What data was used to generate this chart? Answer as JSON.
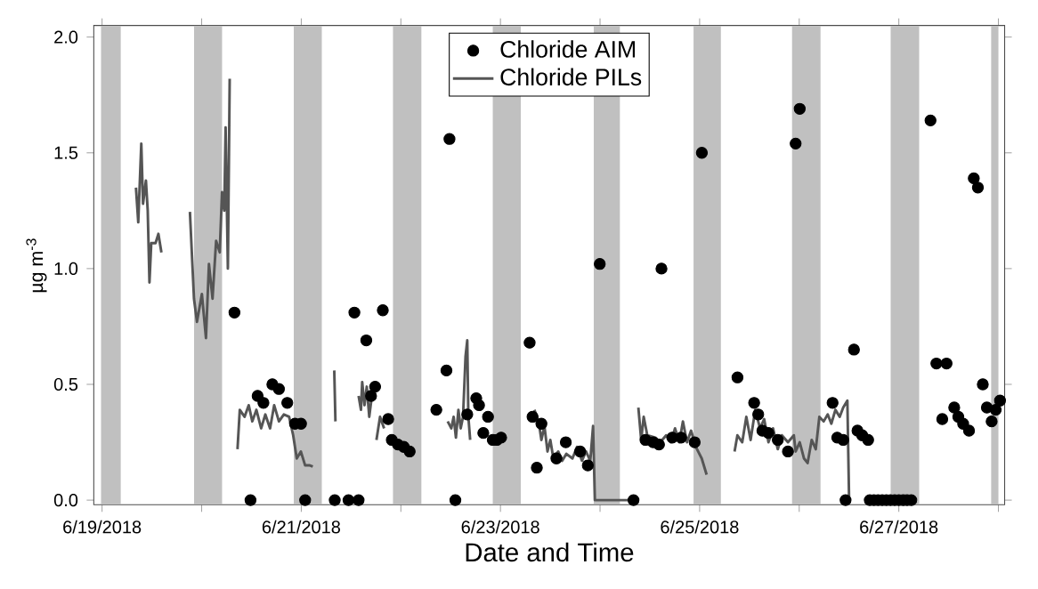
{
  "chart_data": {
    "type": "line",
    "xlabel": "Date and Time",
    "ylabel": "µg m$^{-3}$",
    "xlim": [
      "2018-06-18T22:00",
      "2018-06-28T01:30"
    ],
    "ylim": [
      -0.02,
      2.05
    ],
    "xticks": [
      {
        "value": "2018-06-19",
        "label": "6/19/2018"
      },
      {
        "value": "2018-06-20",
        "label": null
      },
      {
        "value": "2018-06-21",
        "label": "6/21/2018"
      },
      {
        "value": "2018-06-22",
        "label": null
      },
      {
        "value": "2018-06-23",
        "label": "6/23/2018"
      },
      {
        "value": "2018-06-24",
        "label": null
      },
      {
        "value": "2018-06-25",
        "label": "6/25/2018"
      },
      {
        "value": "2018-06-26",
        "label": null
      },
      {
        "value": "2018-06-27",
        "label": "6/27/2018"
      },
      {
        "value": "2018-06-28",
        "label": null
      }
    ],
    "yticks": [
      {
        "value": 0,
        "label": "0.0"
      },
      {
        "value": 0.5,
        "label": "0.5"
      },
      {
        "value": 1,
        "label": "1.0"
      },
      {
        "value": 1.5,
        "label": "1.5"
      },
      {
        "value": 2,
        "label": "2.0"
      }
    ],
    "legend": "top",
    "grid": false,
    "bands": [
      {
        "axis": "x",
        "from": "2018-06-18T23:45",
        "to": "2018-06-19T04:30",
        "color": "#c0c0c0"
      },
      {
        "axis": "x",
        "from": "2018-06-19T22:10",
        "to": "2018-06-20T04:55",
        "color": "#c0c0c0"
      },
      {
        "axis": "x",
        "from": "2018-06-20T22:12",
        "to": "2018-06-21T04:57",
        "color": "#c0c0c0"
      },
      {
        "axis": "x",
        "from": "2018-06-21T22:06",
        "to": "2018-06-22T04:58",
        "color": "#c0c0c0"
      },
      {
        "axis": "x",
        "from": "2018-06-22T22:09",
        "to": "2018-06-23T04:54",
        "color": "#c0c0c0"
      },
      {
        "axis": "x",
        "from": "2018-06-23T22:29",
        "to": "2018-06-24T04:47",
        "color": "#c0c0c0"
      },
      {
        "axis": "x",
        "from": "2018-06-24T22:32",
        "to": "2018-06-25T05:07",
        "color": "#c0c0c0"
      },
      {
        "axis": "x",
        "from": "2018-06-25T22:16",
        "to": "2018-06-26T05:08",
        "color": "#c0c0c0"
      },
      {
        "axis": "x",
        "from": "2018-06-26T22:02",
        "to": "2018-06-27T04:54",
        "color": "#c0c0c0"
      },
      {
        "axis": "x",
        "from": "2018-06-27T22:15",
        "to": "2018-06-28T00:00",
        "color": "#c0c0c0"
      }
    ],
    "series": [
      {
        "name": "Chloride AIM",
        "type": "scatter",
        "marker": "circle",
        "color": "#000000",
        "x": [
          "2018-06-20T07:54",
          "2018-06-20T11:46",
          "2018-06-20T13:29",
          "2018-06-20T14:53",
          "2018-06-20T17:02",
          "2018-06-20T18:37",
          "2018-06-20T20:38",
          "2018-06-20T22:29",
          "2018-06-20T23:56",
          "2018-06-21T00:56",
          "2018-06-21T08:04",
          "2018-06-21T11:23",
          "2018-06-21T12:48",
          "2018-06-21T13:49",
          "2018-06-21T15:40",
          "2018-06-21T16:49",
          "2018-06-21T17:48",
          "2018-06-21T19:39",
          "2018-06-21T20:57",
          "2018-06-21T21:49",
          "2018-06-21T23:17",
          "2018-06-22T00:42",
          "2018-06-22T02:07",
          "2018-06-22T08:33",
          "2018-06-22T10:59",
          "2018-06-22T11:43",
          "2018-06-22T13:08",
          "2018-06-22T16:00",
          "2018-06-22T18:10",
          "2018-06-22T18:50",
          "2018-06-22T19:52",
          "2018-06-22T21:00",
          "2018-06-22T22:09",
          "2018-06-22T23:08",
          "2018-06-23T00:10",
          "2018-06-23T07:02",
          "2018-06-23T07:44",
          "2018-06-23T08:46",
          "2018-06-23T09:52",
          "2018-06-23T13:29",
          "2018-06-23T15:45",
          "2018-06-23T19:12",
          "2018-06-23T21:03",
          "2018-06-23T23:56",
          "2018-06-24T08:04",
          "2018-06-24T10:57",
          "2018-06-24T12:48",
          "2018-06-24T14:12",
          "2018-06-24T14:48",
          "2018-06-24T17:24",
          "2018-06-24T19:32",
          "2018-06-24T22:48",
          "2018-06-25T00:32",
          "2018-06-25T09:07",
          "2018-06-25T13:08",
          "2018-06-25T14:07",
          "2018-06-25T15:07",
          "2018-06-25T16:34",
          "2018-06-25T18:50",
          "2018-06-25T21:17",
          "2018-06-25T23:08",
          "2018-06-26T00:07",
          "2018-06-26T08:02",
          "2018-06-26T09:09",
          "2018-06-26T10:36",
          "2018-06-26T11:10",
          "2018-06-26T13:11",
          "2018-06-26T14:02",
          "2018-06-26T15:10",
          "2018-06-26T16:36",
          "2018-06-26T17:00",
          "2018-06-26T18:00",
          "2018-06-26T19:00",
          "2018-06-26T20:00",
          "2018-06-26T21:00",
          "2018-06-26T22:00",
          "2018-06-26T23:00",
          "2018-06-27T00:00",
          "2018-06-27T01:00",
          "2018-06-27T02:00",
          "2018-06-27T03:00",
          "2018-06-27T07:38",
          "2018-06-27T09:03",
          "2018-06-27T10:28",
          "2018-06-27T11:30",
          "2018-06-27T13:21",
          "2018-06-27T14:20",
          "2018-06-27T15:30",
          "2018-06-27T16:55",
          "2018-06-27T18:04",
          "2018-06-27T19:03",
          "2018-06-27T20:14",
          "2018-06-27T21:13",
          "2018-06-27T22:22",
          "2018-06-27T23:21",
          "2018-06-28T00:23"
        ],
        "values": [
          0.81,
          0,
          0.45,
          0.42,
          0.5,
          0.48,
          0.42,
          0.33,
          0.33,
          0,
          0,
          0,
          0.81,
          0,
          0.69,
          0.45,
          0.49,
          0.82,
          0.35,
          0.26,
          0.24,
          0.23,
          0.21,
          0.39,
          0.56,
          1.56,
          0,
          0.37,
          0.44,
          0.41,
          0.29,
          0.36,
          0.26,
          0.26,
          0.27,
          0.68,
          0.36,
          0.14,
          0.33,
          0.18,
          0.25,
          0.21,
          0.15,
          1.02,
          0,
          0.26,
          0.25,
          0.24,
          1.0,
          0.27,
          0.27,
          0.25,
          1.5,
          0.53,
          0.42,
          0.37,
          0.3,
          0.29,
          0.26,
          0.21,
          1.54,
          1.69,
          0.42,
          0.27,
          0.26,
          0,
          0.65,
          0.3,
          0.28,
          0.26,
          0,
          0,
          0,
          0,
          0,
          0,
          0,
          0,
          0,
          0,
          0,
          1.64,
          0.59,
          0.35,
          0.59,
          0.4,
          0.36,
          0.33,
          0.3,
          1.39,
          1.35,
          0.5,
          0.4,
          0.34,
          0.39,
          0.43
        ]
      },
      {
        "name": "Chloride PILs",
        "type": "line",
        "color": "#555555",
        "x": [
          "2018-06-19T08:10",
          "2018-06-19T08:43",
          "2018-06-19T09:27",
          "2018-06-19T09:52",
          "2018-06-19T10:34",
          "2018-06-19T11:00",
          "2018-06-19T11:25",
          "2018-06-19T11:51",
          "2018-06-19T12:53",
          "2018-06-19T13:34",
          "2018-06-19T14:18",
          "2018-06-19T18:00",
          "2018-06-19T21:10",
          "2018-06-19T22:09",
          "2018-06-19T22:52",
          "2018-06-20T00:03",
          "2018-06-20T01:02",
          "2018-06-20T01:45",
          "2018-06-20T02:37",
          "2018-06-20T03:29",
          "2018-06-20T04:21",
          "2018-06-20T04:54",
          "2018-06-20T05:27",
          "2018-06-20T05:46",
          "2018-06-20T06:19",
          "2018-06-20T06:45",
          "2018-06-20T07:40",
          "2018-06-20T08:38",
          "2018-06-20T09:11",
          "2018-06-20T10:20",
          "2018-06-20T11:20",
          "2018-06-20T12:12",
          "2018-06-20T13:11",
          "2018-06-20T14:20",
          "2018-06-20T15:20",
          "2018-06-20T16:29",
          "2018-06-20T17:28",
          "2018-06-20T18:37",
          "2018-06-20T19:48",
          "2018-06-20T21:04",
          "2018-06-20T22:03",
          "2018-06-20T22:55",
          "2018-06-20T23:54",
          "2018-06-21T00:56",
          "2018-06-21T02:04",
          "2018-06-21T02:47",
          "2018-06-21T05:00",
          "2018-06-21T07:57",
          "2018-06-21T08:14",
          "2018-06-21T11:00",
          "2018-06-21T13:49",
          "2018-06-21T14:23",
          "2018-06-21T14:41",
          "2018-06-21T15:14",
          "2018-06-21T15:47",
          "2018-06-21T16:23",
          "2018-06-21T17:05",
          "2018-06-21T17:35",
          "2018-06-21T18:07",
          "2018-06-21T18:59",
          "2018-06-21T19:58",
          "2018-06-22T06:00",
          "2018-06-22T11:17",
          "2018-06-22T12:09",
          "2018-06-22T12:43",
          "2018-06-22T13:16",
          "2018-06-22T13:52",
          "2018-06-22T14:25",
          "2018-06-22T14:59",
          "2018-06-22T15:35",
          "2018-06-22T16:00",
          "2018-06-22T16:16",
          "2018-06-22T16:42",
          "2018-06-23T02:00",
          "2018-06-23T08:10",
          "2018-06-23T09:12",
          "2018-06-23T09:52",
          "2018-06-23T10:36",
          "2018-06-23T11:20",
          "2018-06-23T12:01",
          "2018-06-23T12:45",
          "2018-06-23T13:55",
          "2018-06-23T14:54",
          "2018-06-23T15:53",
          "2018-06-23T17:21",
          "2018-06-23T18:27",
          "2018-06-23T19:38",
          "2018-06-23T20:37",
          "2018-06-23T21:39",
          "2018-06-23T22:19",
          "2018-06-23T22:45",
          "2018-06-24T07:21",
          "2018-06-24T08:20",
          "2018-06-24T09:14",
          "2018-06-24T09:55",
          "2018-06-24T10:31",
          "2018-06-24T11:23",
          "2018-06-24T13:20",
          "2018-06-24T14:31",
          "2018-06-24T15:56",
          "2018-06-24T17:05",
          "2018-06-24T18:04",
          "2018-06-24T19:06",
          "2018-06-24T19:58",
          "2018-06-24T20:57",
          "2018-06-24T21:56",
          "2018-06-24T23:05",
          "2018-06-25T00:30",
          "2018-06-25T01:41",
          "2018-06-25T05:00",
          "2018-06-25T08:25",
          "2018-06-25T09:06",
          "2018-06-25T10:16",
          "2018-06-25T11:15",
          "2018-06-25T12:17",
          "2018-06-25T13:24",
          "2018-06-25T14:33",
          "2018-06-25T15:33",
          "2018-06-25T16:35",
          "2018-06-25T17:41",
          "2018-06-25T18:50",
          "2018-06-25T19:49",
          "2018-06-25T21:17",
          "2018-06-25T22:42",
          "2018-06-25T23:08",
          "2018-06-26T00:07",
          "2018-06-26T01:09",
          "2018-06-26T02:01",
          "2018-06-26T03:00",
          "2018-06-26T03:59",
          "2018-06-26T04:51",
          "2018-06-26T05:53",
          "2018-06-26T06:52",
          "2018-06-26T07:44",
          "2018-06-26T08:43",
          "2018-06-26T09:45",
          "2018-06-26T10:36",
          "2018-06-26T11:36",
          "2018-06-26T12:01"
        ],
        "values": [
          1.35,
          1.2,
          1.54,
          1.28,
          1.38,
          1.25,
          0.94,
          1.11,
          1.11,
          1.15,
          1.07,
          null,
          1.245,
          0.87,
          0.77,
          0.89,
          0.7,
          1.02,
          0.87,
          1.12,
          1.07,
          1.33,
          1.25,
          1.61,
          1.0,
          1.82,
          null,
          0.22,
          0.39,
          0.36,
          0.41,
          0.34,
          0.39,
          0.31,
          0.37,
          0.31,
          0.41,
          0.34,
          0.37,
          0.36,
          0.28,
          0.18,
          0.21,
          0.15,
          0.15,
          0.145,
          null,
          0.56,
          0.34,
          null,
          0.45,
          0.39,
          0.51,
          0.41,
          0.49,
          0.36,
          0.46,
          null,
          0.26,
          0.36,
          0.31,
          null,
          0.34,
          0.31,
          0.36,
          0.27,
          0.39,
          0.31,
          0.36,
          0.62,
          0.69,
          0.36,
          0.26,
          null,
          0.39,
          0.34,
          0.26,
          0.32,
          0.21,
          0.26,
          0.18,
          0.21,
          0.17,
          0.2,
          0.18,
          0.23,
          0.17,
          0.21,
          0.17,
          0.32,
          0,
          0,
          null,
          0.4,
          0.26,
          0.36,
          0.28,
          0.27,
          0.25,
          0.28,
          0.25,
          0.31,
          0.25,
          0.34,
          0.25,
          0.3,
          0.23,
          0.18,
          0.11,
          null,
          0.21,
          0.28,
          0.25,
          0.36,
          0.26,
          0.39,
          0.31,
          0.35,
          0.25,
          0.31,
          0.22,
          0.28,
          0.25,
          0.28,
          0.21,
          0.25,
          0.18,
          0.16,
          0.26,
          0.22,
          0.36,
          0.34,
          0.37,
          0.33,
          0.39,
          0.36,
          0.4,
          0.43,
          0
        ]
      }
    ]
  }
}
